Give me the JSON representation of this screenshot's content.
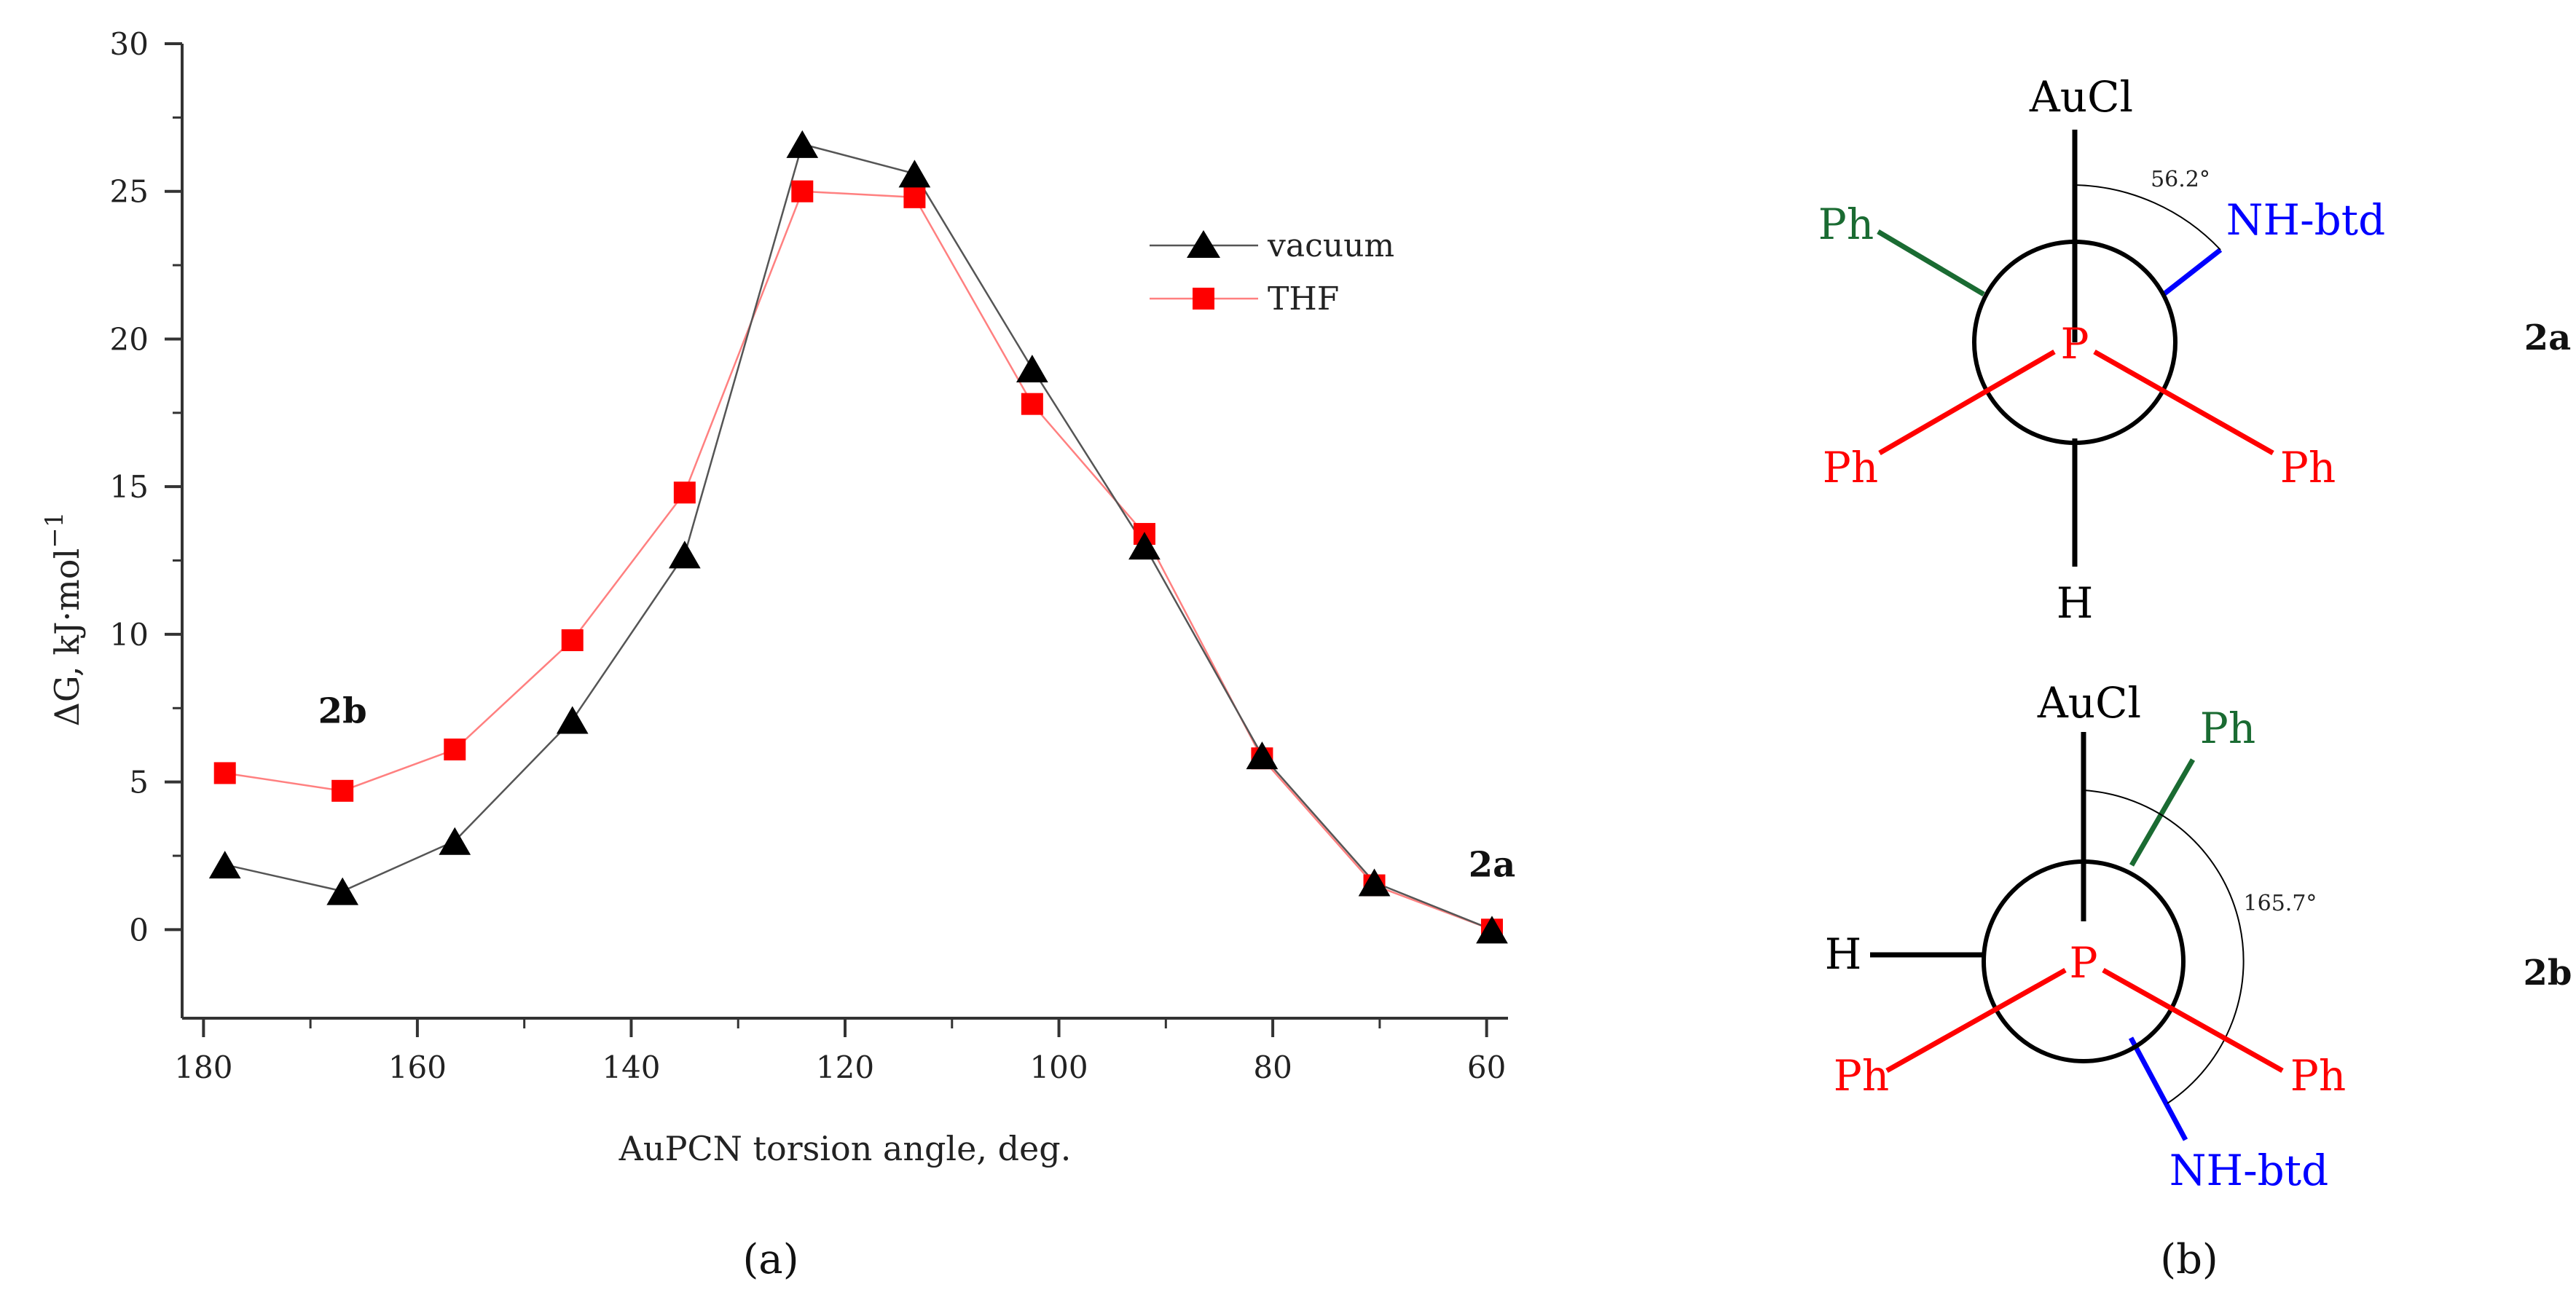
{
  "chart_data": {
    "type": "line",
    "xlabel": "AuPCN torsion angle, deg.",
    "ylabel_main": "ΔG, kJ·mol",
    "ylabel_sup": "−1",
    "xlim": [
      182,
      58
    ],
    "ylim": [
      -3,
      30
    ],
    "xticks": [
      180,
      160,
      140,
      120,
      100,
      80,
      60
    ],
    "yticks": [
      0,
      5,
      10,
      15,
      20,
      25,
      30
    ],
    "legend": "top-right",
    "series": [
      {
        "name": "vacuum",
        "color": "#000000",
        "line_color": "#555555",
        "marker": "triangle",
        "x": [
          178,
          167,
          156.5,
          145.5,
          135,
          124,
          113.5,
          102.5,
          92,
          81,
          70.5,
          59.5
        ],
        "y": [
          2.2,
          1.3,
          3.0,
          7.1,
          12.7,
          26.6,
          25.6,
          19.0,
          13.0,
          5.9,
          1.6,
          0.0
        ]
      },
      {
        "name": "THF",
        "color": "#ff0000",
        "line_color": "#ff8080",
        "marker": "square",
        "x": [
          178,
          167,
          156.5,
          145.5,
          135,
          124,
          113.5,
          102.5,
          92,
          81,
          70.5,
          59.5
        ],
        "y": [
          5.3,
          4.7,
          6.1,
          9.8,
          14.8,
          25.0,
          24.8,
          17.8,
          13.4,
          5.8,
          1.5,
          0.0
        ]
      }
    ],
    "annotations": [
      {
        "text": "2b",
        "x": 167,
        "y": 7.0
      },
      {
        "text": "2a",
        "x": 59.5,
        "y": 1.8
      }
    ]
  },
  "panels": {
    "a": "(a)",
    "b": "(b)"
  },
  "colors": {
    "black": "#000000",
    "green": "#1a6b32",
    "blue": "#0000ff",
    "red": "#ff0000"
  },
  "molecules": {
    "m2a": {
      "name": "2a",
      "top": "AuCl",
      "bottom": "H",
      "left_upper": "Ph",
      "right_upper": "NH-btd",
      "left_lower": "Ph",
      "right_lower": "Ph",
      "center": "P",
      "angle": "56.2°"
    },
    "m2b": {
      "name": "2b",
      "top": "AuCl",
      "top_right": "Ph",
      "left": "H",
      "left_lower": "Ph",
      "right_lower": "Ph",
      "bottom_right": "NH-btd",
      "center": "P",
      "angle": "165.7°"
    }
  }
}
